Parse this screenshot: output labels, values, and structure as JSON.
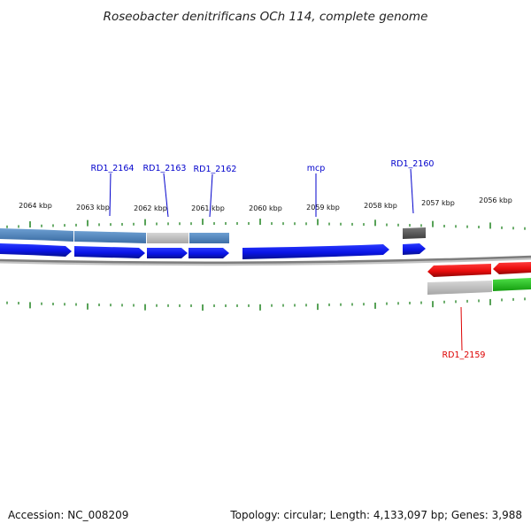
{
  "title": "Roseobacter denitrificans OCh 114, complete genome",
  "footer": {
    "accession": "Accession: NC_008209",
    "summary": "Topology: circular; Length: 4,133,097 bp; Genes: 3,988"
  },
  "colors": {
    "forward_cds": "#0a14e6",
    "reverse_cds": "#e80d0d",
    "cog_blue": "#4f86c0",
    "cog_gray": "#bcbcbc",
    "cog_dark": "#5a5a5a",
    "cog_green": "#22c41c",
    "tick": "#2d8a2d",
    "backbone": "#8a8a8a",
    "forward_label": "#0000cc",
    "reverse_label": "#dd0000"
  },
  "scale_labels": [
    "2064 kbp",
    "2063 kbp",
    "2062 kbp",
    "2061 kbp",
    "2060 kbp",
    "2059 kbp",
    "2058 kbp",
    "2057 kbp",
    "2056 kbp"
  ],
  "gene_labels": [
    {
      "text": "RD1_2164",
      "strand": "forward"
    },
    {
      "text": "RD1_2163",
      "strand": "forward"
    },
    {
      "text": "RD1_2162",
      "strand": "forward"
    },
    {
      "text": "mcp",
      "strand": "forward"
    },
    {
      "text": "RD1_2160",
      "strand": "forward"
    },
    {
      "text": "RD1_2159",
      "strand": "reverse"
    }
  ]
}
